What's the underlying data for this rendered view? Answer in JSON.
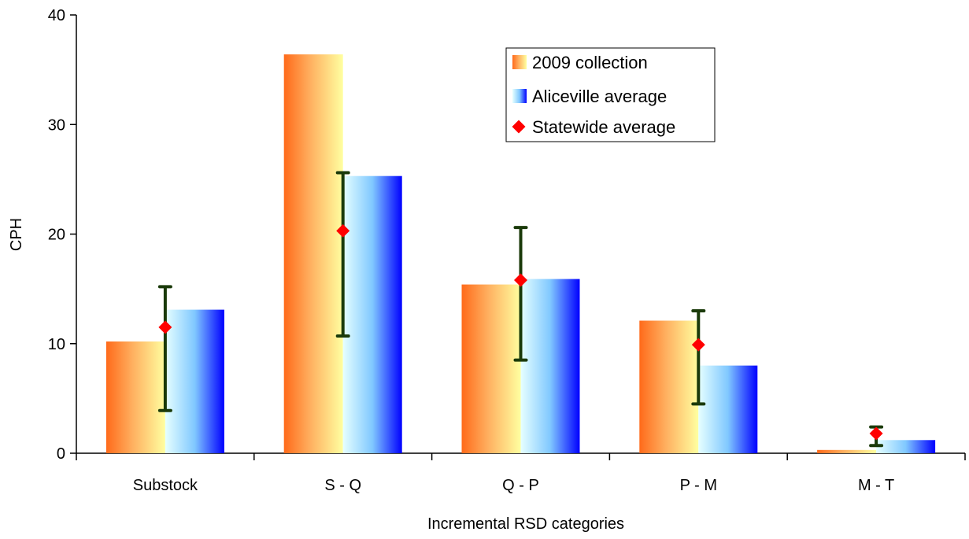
{
  "chart_data": {
    "type": "bar",
    "title": "",
    "xlabel": "Incremental RSD categories",
    "ylabel": "CPH",
    "ylim": [
      0,
      40
    ],
    "yticks": [
      0,
      10,
      20,
      30,
      40
    ],
    "categories": [
      "Substock",
      "S - Q",
      "Q - P",
      "P - M",
      "M - T"
    ],
    "series": [
      {
        "name": "2009 collection",
        "kind": "bar",
        "values": [
          10.2,
          36.4,
          15.4,
          12.1,
          0.3
        ],
        "gradient": [
          "#ff6a1a",
          "#ffb060",
          "#ffffa0"
        ]
      },
      {
        "name": "Aliceville average",
        "kind": "bar",
        "values": [
          13.1,
          25.3,
          15.9,
          8.0,
          1.2
        ],
        "gradient": [
          "#e6ffff",
          "#80c8ff",
          "#0000ff"
        ]
      },
      {
        "name": "Statewide average",
        "kind": "point",
        "values": [
          11.5,
          20.3,
          15.8,
          9.9,
          1.8
        ],
        "error_low": [
          3.9,
          10.7,
          8.5,
          4.5,
          0.7
        ],
        "error_high": [
          15.2,
          25.6,
          20.6,
          13.0,
          2.4
        ],
        "marker_color": "#ff0000",
        "errorbar_color": "#1a3a0a"
      }
    ],
    "grid": false,
    "legend_position": "top-right"
  }
}
